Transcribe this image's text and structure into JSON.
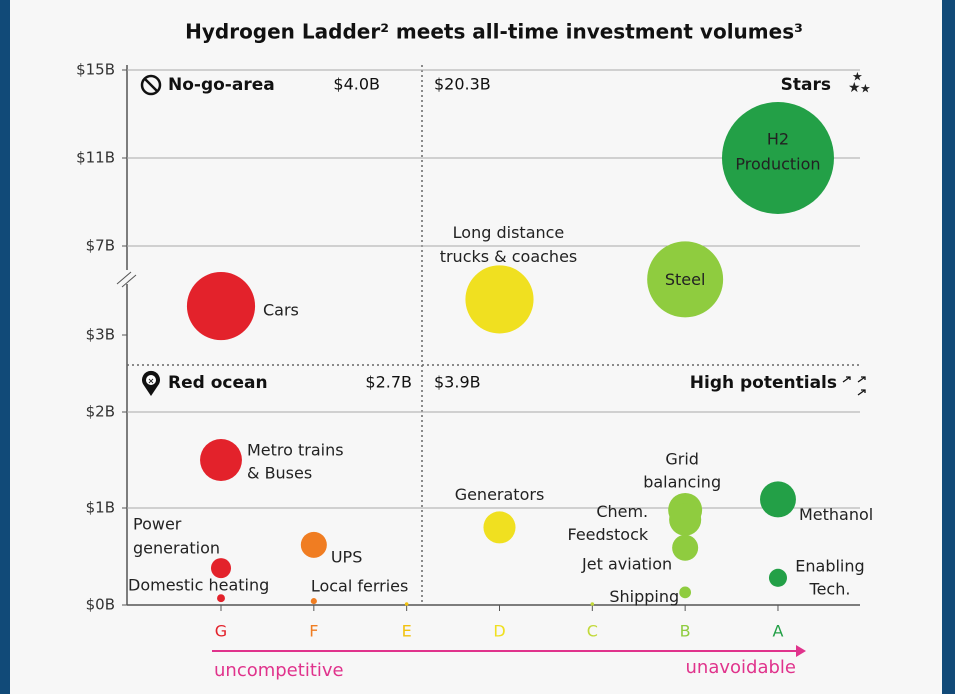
{
  "chart_data": {
    "type": "bubble",
    "title": "Hydrogen Ladder² meets all-time investment volumes³",
    "categories": [
      "G",
      "F",
      "E",
      "D",
      "C",
      "B",
      "A"
    ],
    "category_colors": [
      "#e3222b",
      "#f07d22",
      "#f2c20f",
      "#f0e020",
      "#c2d93a",
      "#8fcc3f",
      "#23a047"
    ],
    "ylim": [
      0,
      15
    ],
    "yticks": [
      {
        "value": 0,
        "label": "$0B"
      },
      {
        "value": 1,
        "label": "$1B"
      },
      {
        "value": 2,
        "label": "$2B"
      },
      {
        "value": 3,
        "label": "$3B"
      },
      {
        "value": 7,
        "label": "$7B"
      },
      {
        "value": 11,
        "label": "$11B"
      },
      {
        "value": 15,
        "label": "$15B"
      }
    ],
    "grid": true,
    "quadrants": [
      {
        "label": "No-go-area",
        "total": "$4.0B"
      },
      {
        "label": "Stars",
        "total": "$20.3B"
      },
      {
        "label": "Red ocean",
        "total": "$2.7B"
      },
      {
        "label": "High potentials",
        "total": "$3.9B"
      }
    ],
    "x_axis_left_label": "uncompetitive",
    "x_axis_right_label": "unavoidable",
    "points": [
      {
        "label": [
          "H2",
          "Production"
        ],
        "category": 6,
        "value": 11,
        "size": 100
      },
      {
        "label": [
          "Steel"
        ],
        "category": 5,
        "value": 5.5,
        "size": 46
      },
      {
        "label": [
          "Cars"
        ],
        "category": 0,
        "value": 4.3,
        "size": 37
      },
      {
        "label": [
          "Long distance",
          "trucks & coaches"
        ],
        "category": 3,
        "value": 4.6,
        "size": 37
      },
      {
        "label": [
          "Metro trains",
          "& Buses"
        ],
        "category": 0,
        "value": 1.5,
        "size": 14
      },
      {
        "label": [
          "Power",
          "generation"
        ],
        "category": 0,
        "value": 0.38,
        "size": 3.2
      },
      {
        "label": [
          "Domestic heating"
        ],
        "category": 0,
        "value": 0.07,
        "size": 0.5
      },
      {
        "label": [
          "UPS"
        ],
        "category": 1,
        "value": 0.62,
        "size": 5.4
      },
      {
        "label": [
          "Local ferries"
        ],
        "category": 1,
        "value": 0.04,
        "size": 0.3
      },
      {
        "category": 2,
        "value": 0.01,
        "size": 0.1
      },
      {
        "label": [
          "Generators"
        ],
        "category": 3,
        "value": 0.8,
        "size": 8.2
      },
      {
        "category": 4,
        "value": 0.01,
        "size": 0.1
      },
      {
        "label": [
          "Grid",
          "balancing"
        ],
        "category": 5,
        "value": 0.98,
        "size": 9.2
      },
      {
        "label": [
          "Chem.",
          "Feedstock"
        ],
        "category": 5,
        "value": 0.88,
        "size": 8.2
      },
      {
        "label": [
          "Jet aviation"
        ],
        "category": 5,
        "value": 0.59,
        "size": 5.4
      },
      {
        "label": [
          "Shipping"
        ],
        "category": 5,
        "value": 0.13,
        "size": 1.1
      },
      {
        "label": [
          "Methanol"
        ],
        "category": 6,
        "value": 1.09,
        "size": 10.3
      },
      {
        "label": [
          "Enabling",
          "Tech."
        ],
        "category": 6,
        "value": 0.28,
        "size": 2.6
      }
    ]
  }
}
